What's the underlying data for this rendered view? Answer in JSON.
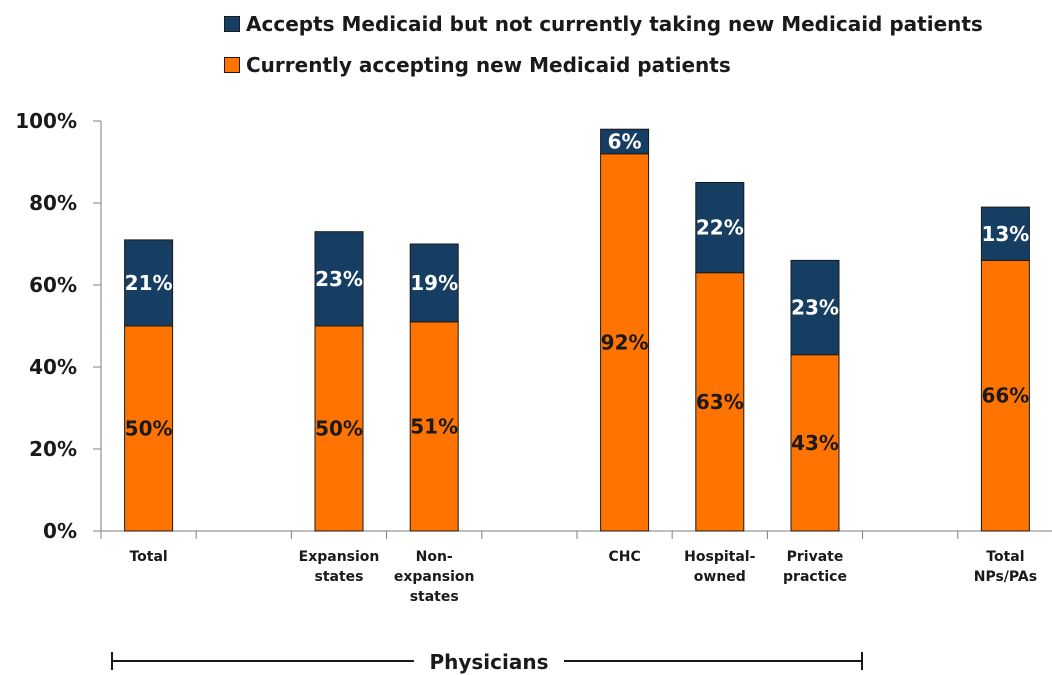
{
  "colors": {
    "accepting": "#ff7400",
    "not_taking": "#163e63",
    "axis": "#7f7f7f",
    "text": "#1a1a1a"
  },
  "legend": [
    {
      "label": "Accepts Medicaid but not currently taking new Medicaid patients",
      "color": "#163e63"
    },
    {
      "label": "Currently accepting new Medicaid patients",
      "color": "#ff7400"
    }
  ],
  "group_label": "Physicians",
  "chart_data": {
    "type": "bar",
    "stacked": true,
    "categories": [
      [
        "Total"
      ],
      [
        ""
      ],
      [
        "Expansion",
        "states"
      ],
      [
        "Non-",
        "expansion",
        "states"
      ],
      [
        ""
      ],
      [
        "CHC"
      ],
      [
        "Hospital-",
        "owned"
      ],
      [
        "Private",
        "practice"
      ],
      [
        ""
      ],
      [
        "Total",
        "NPs/PAs"
      ]
    ],
    "series": [
      {
        "name": "Currently accepting new Medicaid patients",
        "values": [
          50,
          null,
          50,
          51,
          null,
          92,
          63,
          43,
          null,
          66
        ],
        "labels": [
          "50%",
          null,
          "50%",
          "51%",
          null,
          "92%",
          "63%",
          "43%",
          null,
          "66%"
        ]
      },
      {
        "name": "Accepts Medicaid but not currently taking new Medicaid patients",
        "values": [
          21,
          null,
          23,
          19,
          null,
          6,
          22,
          23,
          null,
          13
        ],
        "labels": [
          "21%",
          null,
          "23%",
          "19%",
          null,
          "6%",
          "22%",
          "23%",
          null,
          "13%"
        ]
      }
    ],
    "y_ticks": [
      "0%",
      "20%",
      "40%",
      "60%",
      "80%",
      "100%"
    ],
    "ylim": [
      0,
      100
    ],
    "legend_position": "top"
  }
}
